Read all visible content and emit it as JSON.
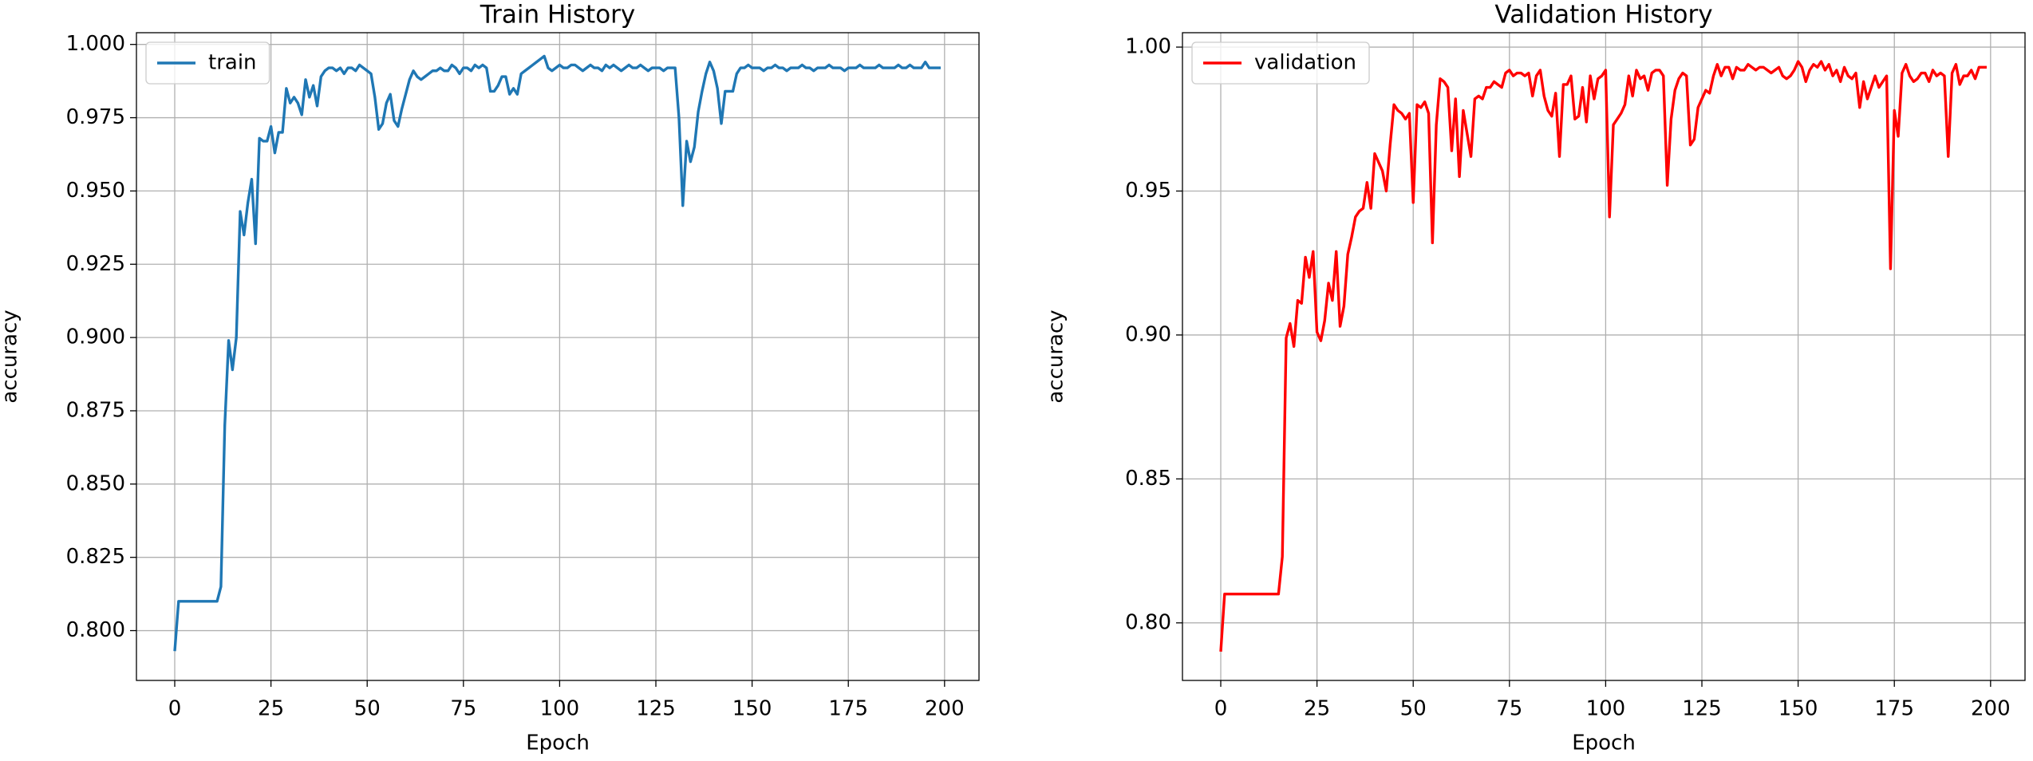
{
  "chart_data": [
    {
      "type": "line",
      "title": "Train History",
      "xlabel": "Epoch",
      "ylabel": "accuracy",
      "x": [
        0,
        1,
        2,
        3,
        4,
        5,
        6,
        7,
        8,
        9,
        10,
        11,
        12,
        13,
        14,
        15,
        16,
        17,
        18,
        19,
        20,
        21,
        22,
        23,
        24,
        25,
        26,
        27,
        28,
        29,
        30,
        31,
        32,
        33,
        34,
        35,
        36,
        37,
        38,
        39,
        40,
        41,
        42,
        43,
        44,
        45,
        46,
        47,
        48,
        49,
        50,
        51,
        52,
        53,
        54,
        55,
        56,
        57,
        58,
        59,
        60,
        61,
        62,
        63,
        64,
        65,
        66,
        67,
        68,
        69,
        70,
        71,
        72,
        73,
        74,
        75,
        76,
        77,
        78,
        79,
        80,
        81,
        82,
        83,
        84,
        85,
        86,
        87,
        88,
        89,
        90,
        91,
        92,
        93,
        94,
        95,
        96,
        97,
        98,
        99,
        100,
        101,
        102,
        103,
        104,
        105,
        106,
        107,
        108,
        109,
        110,
        111,
        112,
        113,
        114,
        115,
        116,
        117,
        118,
        119,
        120,
        121,
        122,
        123,
        124,
        125,
        126,
        127,
        128,
        129,
        130,
        131,
        132,
        133,
        134,
        135,
        136,
        137,
        138,
        139,
        140,
        141,
        142,
        143,
        144,
        145,
        146,
        147,
        148,
        149,
        150,
        151,
        152,
        153,
        154,
        155,
        156,
        157,
        158,
        159,
        160,
        161,
        162,
        163,
        164,
        165,
        166,
        167,
        168,
        169,
        170,
        171,
        172,
        173,
        174,
        175,
        176,
        177,
        178,
        179,
        180,
        181,
        182,
        183,
        184,
        185,
        186,
        187,
        188,
        189,
        190,
        191,
        192,
        193,
        194,
        195,
        196,
        197,
        198,
        199
      ],
      "series": [
        {
          "name": "train",
          "color": "#1f77b4",
          "values": [
            0.793,
            0.81,
            0.81,
            0.81,
            0.81,
            0.81,
            0.81,
            0.81,
            0.81,
            0.81,
            0.81,
            0.81,
            0.815,
            0.87,
            0.899,
            0.889,
            0.9,
            0.943,
            0.935,
            0.946,
            0.954,
            0.932,
            0.968,
            0.967,
            0.967,
            0.972,
            0.963,
            0.97,
            0.97,
            0.985,
            0.98,
            0.982,
            0.98,
            0.976,
            0.988,
            0.982,
            0.986,
            0.979,
            0.989,
            0.991,
            0.992,
            0.992,
            0.991,
            0.992,
            0.99,
            0.992,
            0.992,
            0.991,
            0.993,
            0.992,
            0.991,
            0.99,
            0.982,
            0.971,
            0.973,
            0.98,
            0.983,
            0.974,
            0.972,
            0.978,
            0.983,
            0.988,
            0.991,
            0.989,
            0.988,
            0.989,
            0.99,
            0.991,
            0.991,
            0.992,
            0.991,
            0.991,
            0.993,
            0.992,
            0.99,
            0.992,
            0.992,
            0.991,
            0.993,
            0.992,
            0.993,
            0.992,
            0.984,
            0.984,
            0.986,
            0.989,
            0.989,
            0.983,
            0.985,
            0.983,
            0.99,
            0.991,
            0.992,
            0.993,
            0.994,
            0.995,
            0.996,
            0.992,
            0.991,
            0.992,
            0.993,
            0.992,
            0.992,
            0.993,
            0.993,
            0.992,
            0.991,
            0.992,
            0.993,
            0.992,
            0.992,
            0.991,
            0.993,
            0.992,
            0.993,
            0.992,
            0.991,
            0.992,
            0.993,
            0.992,
            0.992,
            0.993,
            0.992,
            0.991,
            0.992,
            0.992,
            0.992,
            0.991,
            0.992,
            0.992,
            0.992,
            0.975,
            0.945,
            0.967,
            0.96,
            0.965,
            0.977,
            0.984,
            0.99,
            0.994,
            0.991,
            0.985,
            0.973,
            0.984,
            0.984,
            0.984,
            0.99,
            0.992,
            0.992,
            0.993,
            0.992,
            0.992,
            0.992,
            0.991,
            0.992,
            0.992,
            0.993,
            0.992,
            0.992,
            0.991,
            0.992,
            0.992,
            0.992,
            0.993,
            0.992,
            0.992,
            0.991,
            0.992,
            0.992,
            0.992,
            0.993,
            0.992,
            0.992,
            0.992,
            0.991,
            0.992,
            0.992,
            0.992,
            0.993,
            0.992,
            0.992,
            0.992,
            0.992,
            0.993,
            0.992,
            0.992,
            0.992,
            0.992,
            0.993,
            0.992,
            0.992,
            0.993,
            0.992,
            0.992,
            0.992,
            0.994,
            0.992,
            0.992,
            0.992,
            0.992
          ]
        }
      ],
      "xlim": [
        -9.95,
        208.95
      ],
      "ylim": [
        0.783,
        1.004
      ],
      "xticks": [
        0,
        25,
        50,
        75,
        100,
        125,
        150,
        175,
        200
      ],
      "yticks": [
        {
          "value": 0.8,
          "label": "0.800"
        },
        0.825,
        {
          "value": 0.85,
          "label": "0.850"
        },
        0.875,
        {
          "value": 0.9,
          "label": "0.900"
        },
        0.925,
        {
          "value": 0.95,
          "label": "0.950"
        },
        0.975,
        {
          "value": 1.0,
          "label": "1.000"
        }
      ],
      "grid": true,
      "legend": "upper-left"
    },
    {
      "type": "line",
      "title": "Validation History",
      "xlabel": "Epoch",
      "ylabel": "accuracy",
      "x": [
        0,
        1,
        2,
        3,
        4,
        5,
        6,
        7,
        8,
        9,
        10,
        11,
        12,
        13,
        14,
        15,
        16,
        17,
        18,
        19,
        20,
        21,
        22,
        23,
        24,
        25,
        26,
        27,
        28,
        29,
        30,
        31,
        32,
        33,
        34,
        35,
        36,
        37,
        38,
        39,
        40,
        41,
        42,
        43,
        44,
        45,
        46,
        47,
        48,
        49,
        50,
        51,
        52,
        53,
        54,
        55,
        56,
        57,
        58,
        59,
        60,
        61,
        62,
        63,
        64,
        65,
        66,
        67,
        68,
        69,
        70,
        71,
        72,
        73,
        74,
        75,
        76,
        77,
        78,
        79,
        80,
        81,
        82,
        83,
        84,
        85,
        86,
        87,
        88,
        89,
        90,
        91,
        92,
        93,
        94,
        95,
        96,
        97,
        98,
        99,
        100,
        101,
        102,
        103,
        104,
        105,
        106,
        107,
        108,
        109,
        110,
        111,
        112,
        113,
        114,
        115,
        116,
        117,
        118,
        119,
        120,
        121,
        122,
        123,
        124,
        125,
        126,
        127,
        128,
        129,
        130,
        131,
        132,
        133,
        134,
        135,
        136,
        137,
        138,
        139,
        140,
        141,
        142,
        143,
        144,
        145,
        146,
        147,
        148,
        149,
        150,
        151,
        152,
        153,
        154,
        155,
        156,
        157,
        158,
        159,
        160,
        161,
        162,
        163,
        164,
        165,
        166,
        167,
        168,
        169,
        170,
        171,
        172,
        173,
        174,
        175,
        176,
        177,
        178,
        179,
        180,
        181,
        182,
        183,
        184,
        185,
        186,
        187,
        188,
        189,
        190,
        191,
        192,
        193,
        194,
        195,
        196,
        197,
        198,
        199
      ],
      "series": [
        {
          "name": "validation",
          "color": "#ff0000",
          "values": [
            0.79,
            0.81,
            0.81,
            0.81,
            0.81,
            0.81,
            0.81,
            0.81,
            0.81,
            0.81,
            0.81,
            0.81,
            0.81,
            0.81,
            0.81,
            0.81,
            0.823,
            0.899,
            0.904,
            0.896,
            0.912,
            0.911,
            0.927,
            0.92,
            0.929,
            0.901,
            0.898,
            0.905,
            0.918,
            0.912,
            0.929,
            0.903,
            0.91,
            0.928,
            0.934,
            0.941,
            0.943,
            0.944,
            0.953,
            0.944,
            0.963,
            0.96,
            0.957,
            0.95,
            0.966,
            0.98,
            0.978,
            0.977,
            0.975,
            0.977,
            0.946,
            0.98,
            0.979,
            0.981,
            0.977,
            0.932,
            0.973,
            0.989,
            0.988,
            0.986,
            0.964,
            0.982,
            0.955,
            0.978,
            0.97,
            0.962,
            0.982,
            0.983,
            0.982,
            0.986,
            0.986,
            0.988,
            0.987,
            0.986,
            0.991,
            0.992,
            0.99,
            0.991,
            0.991,
            0.99,
            0.991,
            0.983,
            0.99,
            0.992,
            0.983,
            0.978,
            0.976,
            0.984,
            0.962,
            0.987,
            0.987,
            0.99,
            0.975,
            0.976,
            0.986,
            0.974,
            0.99,
            0.982,
            0.989,
            0.99,
            0.992,
            0.941,
            0.973,
            0.975,
            0.977,
            0.98,
            0.99,
            0.983,
            0.992,
            0.989,
            0.99,
            0.985,
            0.991,
            0.992,
            0.992,
            0.99,
            0.952,
            0.975,
            0.985,
            0.989,
            0.991,
            0.99,
            0.966,
            0.968,
            0.979,
            0.982,
            0.985,
            0.984,
            0.99,
            0.994,
            0.99,
            0.993,
            0.993,
            0.989,
            0.993,
            0.992,
            0.992,
            0.994,
            0.993,
            0.992,
            0.993,
            0.993,
            0.992,
            0.991,
            0.992,
            0.993,
            0.99,
            0.989,
            0.99,
            0.992,
            0.995,
            0.993,
            0.988,
            0.992,
            0.994,
            0.993,
            0.995,
            0.992,
            0.994,
            0.99,
            0.992,
            0.988,
            0.993,
            0.99,
            0.989,
            0.991,
            0.979,
            0.988,
            0.982,
            0.986,
            0.99,
            0.986,
            0.988,
            0.99,
            0.923,
            0.978,
            0.969,
            0.991,
            0.994,
            0.99,
            0.988,
            0.989,
            0.991,
            0.991,
            0.988,
            0.992,
            0.99,
            0.991,
            0.99,
            0.962,
            0.991,
            0.994,
            0.987,
            0.99,
            0.99,
            0.992,
            0.989,
            0.993,
            0.993,
            0.993
          ]
        }
      ],
      "xlim": [
        -9.95,
        208.95
      ],
      "ylim": [
        0.78,
        1.005
      ],
      "xticks": [
        0,
        25,
        50,
        75,
        100,
        125,
        150,
        175,
        200
      ],
      "yticks": [
        {
          "value": 0.8,
          "label": "0.80"
        },
        0.85,
        {
          "value": 0.9,
          "label": "0.90"
        },
        0.95,
        {
          "value": 1.0,
          "label": "1.00"
        }
      ],
      "grid": true,
      "legend": "upper-left"
    }
  ]
}
